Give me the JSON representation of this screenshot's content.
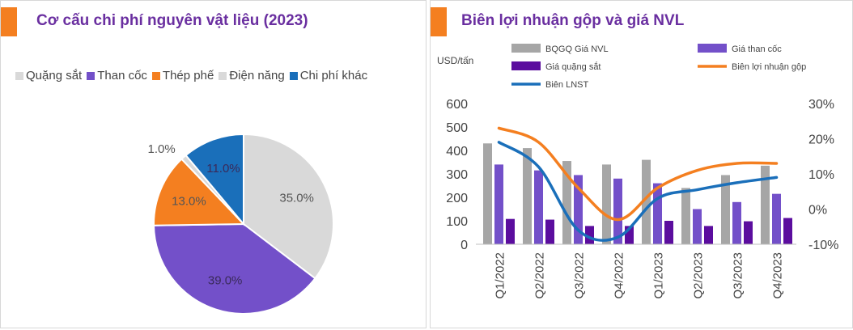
{
  "colors": {
    "accent": "#f47f20",
    "title": "#6a2fa0",
    "gray": "#a6a6a6",
    "light_gray": "#d9d9d9",
    "purple": "#7350c9",
    "dark_purple": "#5b0d9e",
    "orange": "#f47f20",
    "blue": "#1a6fba"
  },
  "left_panel": {
    "title": "Cơ cấu chi phí nguyên vật liệu (2023)"
  },
  "right_panel": {
    "title": "Biên lợi nhuận gộp và giá NVL",
    "y_unit": "USD/tấn"
  },
  "chart_data": [
    {
      "type": "pie",
      "title": "Cơ cấu chi phí nguyên vật liệu (2023)",
      "legend_position": "top",
      "slices": [
        {
          "name": "Quặng sắt",
          "value": 35.0,
          "label": "35.0%",
          "color": "#d9d9d9"
        },
        {
          "name": "Than cốc",
          "value": 39.0,
          "label": "39.0%",
          "color": "#7350c9"
        },
        {
          "name": "Thép phế",
          "value": 13.0,
          "label": "13.0%",
          "color": "#f47f20"
        },
        {
          "name": "Điện năng",
          "value": 1.0,
          "label": "1.0%",
          "color": "#d9d9d9"
        },
        {
          "name": "Chi phí khác",
          "value": 11.0,
          "label": "11.0%",
          "color": "#1a6fba"
        }
      ]
    },
    {
      "type": "bar",
      "title": "Biên lợi nhuận gộp và giá NVL",
      "ylabel": "USD/tấn",
      "categories": [
        "Q1/2022",
        "Q2/2022",
        "Q3/2022",
        "Q4/2022",
        "Q1/2023",
        "Q2/2023",
        "Q3/2023",
        "Q4/2023"
      ],
      "ylim": [
        0,
        600
      ],
      "yticks": [
        0,
        100,
        200,
        300,
        400,
        500,
        600
      ],
      "y2lim": [
        -10,
        30
      ],
      "y2ticks": [
        "-10%",
        "0%",
        "10%",
        "20%",
        "30%"
      ],
      "y2tick_values": [
        -10,
        0,
        10,
        20,
        30
      ],
      "legend_position": "top",
      "series": [
        {
          "name": "BQGQ Giá NVL",
          "kind": "bar",
          "axis": "left",
          "color": "#a6a6a6",
          "values": [
            430,
            410,
            355,
            340,
            360,
            240,
            295,
            335
          ]
        },
        {
          "name": "Giá than cốc",
          "kind": "bar",
          "axis": "left",
          "color": "#7350c9",
          "values": [
            340,
            315,
            295,
            280,
            260,
            150,
            180,
            215
          ]
        },
        {
          "name": "Giá quặng sắt",
          "kind": "bar",
          "axis": "left",
          "color": "#5b0d9e",
          "values": [
            108,
            105,
            78,
            78,
            100,
            78,
            98,
            112
          ]
        },
        {
          "name": "Biên lợi nhuận gộp",
          "kind": "line",
          "axis": "right",
          "color": "#f47f20",
          "values": [
            23,
            19,
            6,
            -3,
            6,
            11,
            13,
            13
          ]
        },
        {
          "name": "Biên LNST",
          "kind": "line",
          "axis": "right",
          "color": "#1a6fba",
          "values": [
            19,
            12,
            -6,
            -8,
            3,
            5.5,
            7.5,
            9
          ]
        }
      ]
    }
  ]
}
